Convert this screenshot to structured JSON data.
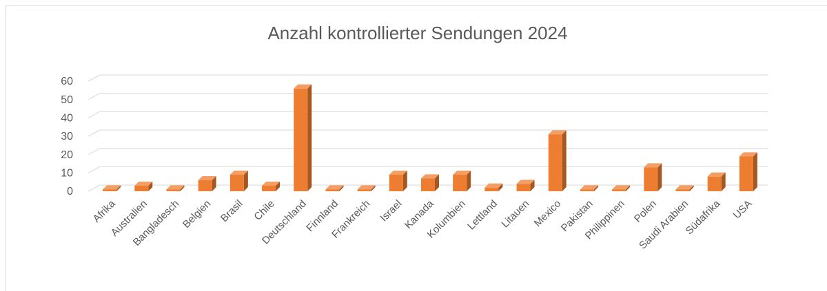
{
  "chart_data": {
    "type": "bar3d",
    "title": "Anzahl kontrollierter Sendungen 2024",
    "categories": [
      "Afrika",
      "Australien",
      "Bangladesch",
      "Belgien",
      "Brasil",
      "Chile",
      "Deutschland",
      "Finnland",
      "Frankreich",
      "Israel",
      "Kanada",
      "Kolumbien",
      "Lettland",
      "Litauen",
      "Mexico",
      "Pakistan",
      "Philippinen",
      "Polen",
      "Saudi Arabien",
      "Südafrika",
      "USA"
    ],
    "values": [
      1,
      3,
      1,
      6,
      9,
      3,
      56,
      1,
      1,
      9,
      7,
      9,
      2,
      4,
      31,
      1,
      1,
      13,
      1,
      8,
      19
    ],
    "color": "#ed7d31",
    "ylim": [
      0,
      60
    ],
    "yticks": [
      0,
      10,
      20,
      30,
      40,
      50,
      60
    ],
    "grid": true
  }
}
